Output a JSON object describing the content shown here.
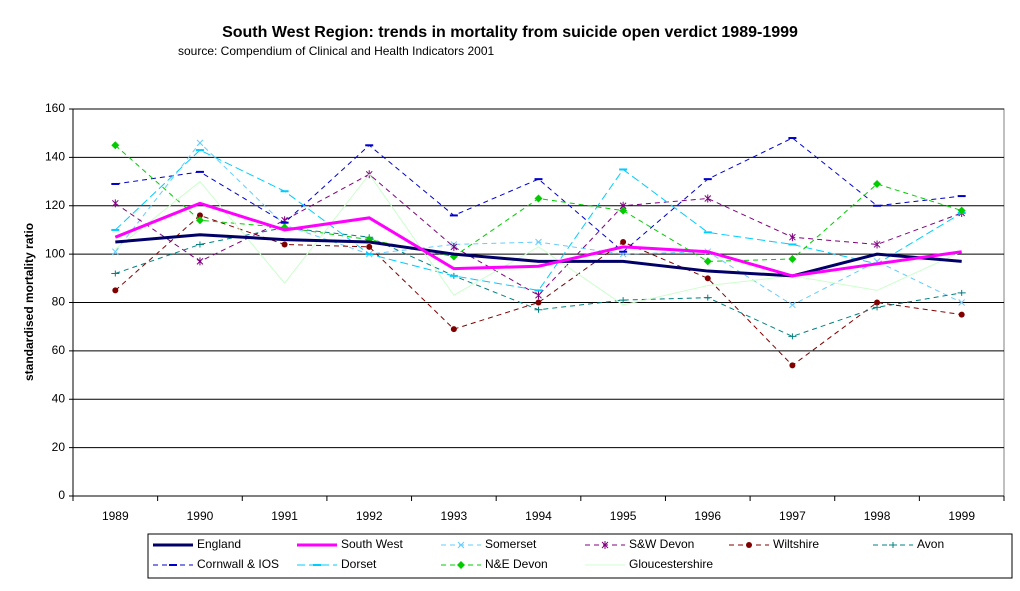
{
  "chart_data": {
    "type": "line",
    "title": "South West Region:  trends in mortality from suicide open verdict 1989-1999",
    "subtitle": "source: Compendium of Clinical and Health Indicators  2001",
    "y_label": "standardised mortality ratio",
    "categories": [
      "1989",
      "1990",
      "1991",
      "1992",
      "1993",
      "1994",
      "1995",
      "1996",
      "1997",
      "1998",
      "1999"
    ],
    "series": [
      {
        "name": "England",
        "color": "#000066",
        "values": [
          105,
          108,
          106,
          105,
          100,
          97,
          97,
          93,
          91,
          100,
          97
        ]
      },
      {
        "name": "South West",
        "color": "#ff00ff",
        "values": [
          107,
          121,
          110,
          115,
          94,
          95,
          103,
          101,
          91,
          96,
          101
        ]
      },
      {
        "name": "Somerset",
        "color": "#66ccff",
        "values": [
          101,
          146,
          112,
          100,
          104,
          105,
          100,
          101,
          79,
          97,
          80
        ]
      },
      {
        "name": "S&W Devon",
        "color": "#800080",
        "values": [
          121,
          97,
          114,
          133,
          103,
          83,
          120,
          123,
          107,
          104,
          117
        ]
      },
      {
        "name": "Wiltshire",
        "color": "#800000",
        "values": [
          85,
          116,
          104,
          103,
          69,
          80,
          105,
          90,
          54,
          80,
          75
        ]
      },
      {
        "name": "Avon",
        "color": "#008080",
        "values": [
          92,
          104,
          111,
          107,
          91,
          77,
          81,
          82,
          66,
          78,
          84
        ]
      },
      {
        "name": "Cornwall & IOS",
        "color": "#0000cc",
        "values": [
          129,
          134,
          113,
          145,
          116,
          131,
          101,
          131,
          148,
          120,
          124
        ]
      },
      {
        "name": "Dorset",
        "color": "#00ccff",
        "values": [
          110,
          143,
          126,
          100,
          91,
          85,
          135,
          109,
          104,
          96,
          117
        ]
      },
      {
        "name": "N&E Devon",
        "color": "#00cc00",
        "values": [
          145,
          114,
          111,
          106,
          99,
          123,
          118,
          97,
          98,
          129,
          118
        ]
      },
      {
        "name": "Gloucestershire",
        "color": "#ccffcc",
        "values": [
          102,
          130,
          88,
          133,
          83,
          103,
          79,
          87,
          91,
          85,
          101
        ]
      }
    ],
    "ylim": [
      0,
      160
    ],
    "yticks": [
      0,
      20,
      40,
      60,
      80,
      100,
      120,
      140,
      160
    ],
    "grid": true
  }
}
